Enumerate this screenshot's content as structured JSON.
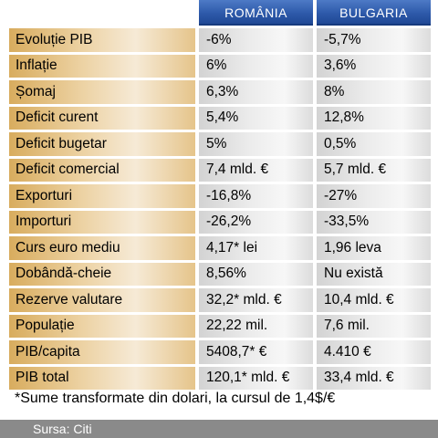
{
  "header": {
    "col1": "ROMÂNIA",
    "col2": "BULGARIA"
  },
  "rows": [
    {
      "label": "Evoluție PIB",
      "romania": "-6%",
      "bulgaria": "-5,7%"
    },
    {
      "label": "Inflație",
      "romania": "6%",
      "bulgaria": "3,6%"
    },
    {
      "label": "Șomaj",
      "romania": "6,3%",
      "bulgaria": "8%"
    },
    {
      "label": "Deficit curent",
      "romania": "5,4%",
      "bulgaria": "12,8%"
    },
    {
      "label": "Deficit bugetar",
      "romania": "5%",
      "bulgaria": "0,5%"
    },
    {
      "label": "Deficit comercial",
      "romania": "7,4 mld. €",
      "bulgaria": "5,7 mld. €"
    },
    {
      "label": "Exporturi",
      "romania": "-16,8%",
      "bulgaria": "-27%"
    },
    {
      "label": "Importuri",
      "romania": "-26,2%",
      "bulgaria": "-33,5%"
    },
    {
      "label": "Curs euro mediu",
      "romania": "4,17* lei",
      "bulgaria": "1,96 leva"
    },
    {
      "label": "Dobândă-cheie",
      "romania": "8,56%",
      "bulgaria": "Nu există"
    },
    {
      "label": "Rezerve valutare",
      "romania": "32,2* mld. €",
      "bulgaria": "10,4 mld. €"
    },
    {
      "label": "Populație",
      "romania": "22,22 mil.",
      "bulgaria": "7,6 mil."
    },
    {
      "label": "PIB/capita",
      "romania": "5408,7* €",
      "bulgaria": "4.410 €"
    },
    {
      "label": "PIB total",
      "romania": "120,1* mld. €",
      "bulgaria": "33,4 mld. €"
    }
  ],
  "footnote": "*Sume transformate din dolari, la cursul de 1,4$/€",
  "source": "Sursa: Citi",
  "colors": {
    "header_blue": "#2c58a8",
    "label_gold": "#d8ac5e",
    "value_gray": "#d3d3d3",
    "source_bar": "#8a8a8a"
  }
}
